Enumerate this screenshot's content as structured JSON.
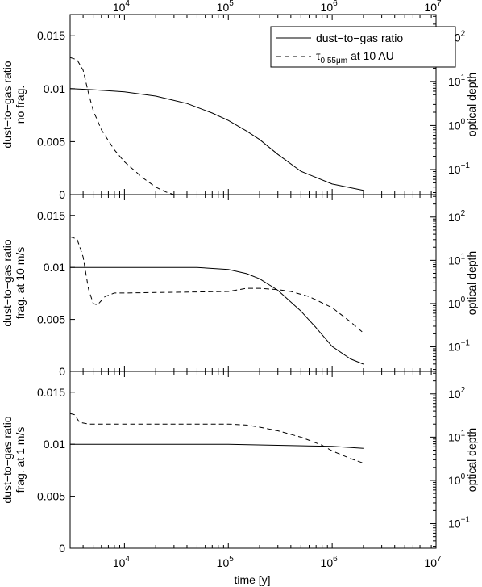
{
  "chart_data": {
    "type": "line",
    "xlabel": "time [y]",
    "x_scale": "log",
    "xlim": [
      3000,
      10000000
    ],
    "x_ticks": [
      10000,
      100000,
      1000000,
      10000000
    ],
    "x_tick_labels": [
      {
        "base": "10",
        "exp": "4"
      },
      {
        "base": "10",
        "exp": "5"
      },
      {
        "base": "10",
        "exp": "6"
      },
      {
        "base": "10",
        "exp": "7"
      }
    ],
    "left_ylim": [
      0,
      0.017
    ],
    "left_yticks": [
      "0",
      "0.005",
      "0.01",
      "0.015"
    ],
    "right_y_scale": "log",
    "right_ylim": [
      0.027,
      330
    ],
    "right_yticks": [
      {
        "base": "10",
        "exp": "−1"
      },
      {
        "base": "10",
        "exp": "0"
      },
      {
        "base": "10",
        "exp": "1"
      },
      {
        "base": "10",
        "exp": "2"
      }
    ],
    "right_ylabel": "optical depth",
    "legend": {
      "position": "top-right",
      "entries": [
        {
          "label": "dust−to−gas ratio",
          "style": "solid"
        },
        {
          "label_base": "τ",
          "label_sub": "0.55μm",
          "label_rest": " at 10 AU",
          "style": "dashed"
        }
      ]
    },
    "panels": [
      {
        "ylabel_line1": "dust−to−gas ratio",
        "ylabel_line2": "no frag.",
        "series": [
          {
            "axis": "left",
            "style": "solid",
            "x": [
              3000,
              5000,
              10000,
              20000,
              40000,
              70000,
              100000,
              150000,
              200000,
              300000,
              500000,
              1000000,
              2000000
            ],
            "y": [
              0.01,
              0.0099,
              0.0097,
              0.0093,
              0.0086,
              0.0077,
              0.007,
              0.006,
              0.0052,
              0.0038,
              0.0022,
              0.001,
              0.0004
            ]
          },
          {
            "axis": "right",
            "style": "dashed",
            "x": [
              3000,
              3500,
              4000,
              4500,
              5000,
              6000,
              8000,
              10000,
              15000,
              20000,
              25000,
              30000
            ],
            "y": [
              35,
              31,
              18,
              5.5,
              2.2,
              0.8,
              0.28,
              0.15,
              0.065,
              0.04,
              0.031,
              0.027
            ]
          }
        ]
      },
      {
        "ylabel_line1": "dust−to−gas ratio",
        "ylabel_line2": "frag. at 10 m/s",
        "series": [
          {
            "axis": "left",
            "style": "solid",
            "x": [
              3000,
              10000,
              50000,
              100000,
              150000,
              200000,
              300000,
              500000,
              700000,
              1000000,
              1500000,
              2000000
            ],
            "y": [
              0.01,
              0.01,
              0.01,
              0.0098,
              0.0094,
              0.0089,
              0.0078,
              0.0058,
              0.0042,
              0.0024,
              0.0012,
              0.0007
            ]
          },
          {
            "axis": "right",
            "style": "dashed",
            "x": [
              3000,
              3500,
              4000,
              4500,
              5000,
              5500,
              6500,
              8000,
              10000,
              20000,
              50000,
              100000,
              150000,
              200000,
              300000,
              400000,
              600000,
              1000000,
              1500000,
              2000000
            ],
            "y": [
              35,
              31,
              12,
              2.2,
              1.0,
              0.93,
              1.45,
              1.75,
              1.75,
              1.8,
              1.85,
              1.9,
              2.25,
              2.25,
              2.1,
              1.9,
              1.45,
              0.8,
              0.38,
              0.21
            ]
          }
        ]
      },
      {
        "ylabel_line1": "dust−to−gas ratio",
        "ylabel_line2": "frag. at 1 m/s",
        "series": [
          {
            "axis": "left",
            "style": "solid",
            "x": [
              3000,
              10000,
              100000,
              300000,
              1000000,
              2000000
            ],
            "y": [
              0.01,
              0.01,
              0.01,
              0.0099,
              0.0098,
              0.0096
            ]
          },
          {
            "axis": "right",
            "style": "dashed",
            "x": [
              3000,
              3300,
              3700,
              4500,
              10000,
              50000,
              100000,
              150000,
              200000,
              300000,
              500000,
              800000,
              1000000,
              1500000,
              2000000
            ],
            "y": [
              35,
              33,
              22,
              20,
              20,
              20,
              20,
              19,
              17,
              14,
              10,
              6.5,
              4.8,
              3.2,
              2.5
            ]
          }
        ]
      }
    ]
  }
}
